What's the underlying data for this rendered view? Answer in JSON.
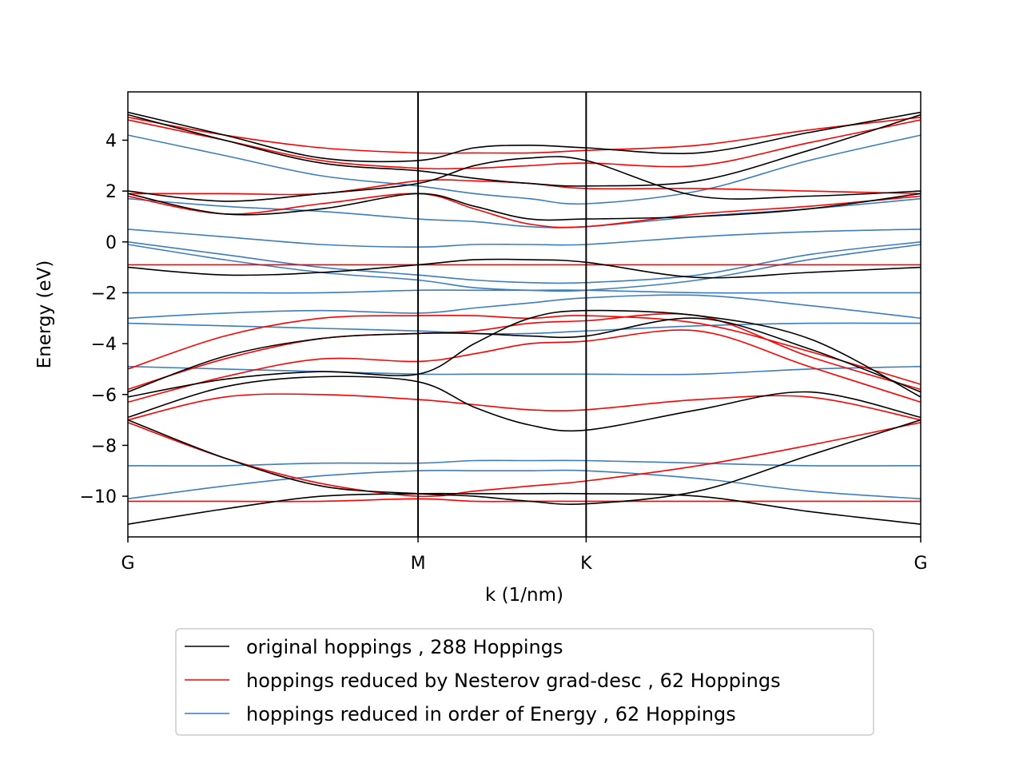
{
  "chart_data": {
    "type": "line",
    "title": "",
    "xlabel": "k (1/nm)",
    "ylabel": "Energy (eV)",
    "xlim": [
      0,
      1
    ],
    "ylim": [
      -11.6,
      5.9
    ],
    "x_ticks": [
      {
        "pos": 0,
        "label": "G"
      },
      {
        "pos": 0.366,
        "label": "M"
      },
      {
        "pos": 0.578,
        "label": "K"
      },
      {
        "pos": 1,
        "label": "G"
      }
    ],
    "y_ticks": [
      4,
      2,
      0,
      -2,
      -4,
      -6,
      -8,
      -10
    ],
    "y_tick_labels": [
      "4",
      "2",
      "0",
      "−2",
      "−4",
      "−6",
      "−8",
      "−10"
    ],
    "vertical_lines_at": [
      0.366,
      0.578
    ],
    "grid": false,
    "legend_position": "below",
    "x": [
      0,
      0.122,
      0.244,
      0.366,
      0.437,
      0.507,
      0.578,
      0.719,
      0.859,
      1
    ],
    "series": [
      {
        "name": "original hoppings , 288 Hoppings",
        "color": "#000000",
        "bands": [
          [
            5.1,
            4.2,
            3.3,
            3.2,
            3.7,
            3.8,
            3.7,
            3.5,
            4.3,
            5.1
          ],
          [
            5.0,
            4.0,
            3.1,
            2.8,
            2.5,
            2.3,
            2.2,
            2.4,
            3.6,
            5.0
          ],
          [
            2.0,
            1.6,
            1.9,
            2.3,
            3.0,
            3.3,
            3.2,
            1.8,
            1.8,
            2.0
          ],
          [
            1.9,
            1.1,
            1.3,
            1.9,
            1.4,
            0.9,
            0.9,
            1.0,
            1.3,
            1.9
          ],
          [
            -1.0,
            -1.3,
            -1.2,
            -0.9,
            -0.7,
            -0.7,
            -0.8,
            -1.4,
            -1.2,
            -1.0
          ],
          [
            -5.9,
            -4.5,
            -3.8,
            -3.6,
            -3.6,
            -3.7,
            -3.7,
            -3.0,
            -4.2,
            -5.9
          ],
          [
            -6.1,
            -5.4,
            -5.1,
            -5.2,
            -4.0,
            -3.0,
            -2.7,
            -2.9,
            -3.8,
            -6.1
          ],
          [
            -6.9,
            -5.7,
            -5.3,
            -5.5,
            -6.5,
            -7.2,
            -7.4,
            -6.6,
            -5.9,
            -6.9
          ],
          [
            -7.0,
            -8.5,
            -9.6,
            -9.9,
            -10.0,
            -10.2,
            -10.3,
            -9.8,
            -8.4,
            -7.0
          ],
          [
            -11.1,
            -10.5,
            -10.0,
            -9.9,
            -9.9,
            -9.9,
            -9.9,
            -10.0,
            -10.6,
            -11.1
          ]
        ]
      },
      {
        "name": "hoppings reduced by Nesterov grad-desc , 62 Hoppings",
        "color": "#ff0000",
        "bands": [
          [
            4.9,
            4.2,
            3.7,
            3.5,
            3.5,
            3.5,
            3.6,
            3.8,
            4.4,
            4.9
          ],
          [
            4.8,
            4.0,
            3.2,
            2.9,
            2.9,
            3.0,
            3.1,
            3.0,
            3.9,
            4.8
          ],
          [
            1.9,
            1.9,
            1.9,
            2.4,
            2.4,
            2.3,
            2.1,
            2.1,
            2.0,
            1.9
          ],
          [
            1.8,
            1.1,
            1.5,
            1.9,
            1.3,
            0.7,
            0.6,
            1.1,
            1.4,
            1.8
          ],
          [
            -0.9,
            -0.9,
            -0.9,
            -0.9,
            -0.9,
            -0.9,
            -0.9,
            -0.9,
            -0.9,
            -0.9
          ],
          [
            -5.0,
            -3.7,
            -3.0,
            -2.9,
            -2.9,
            -3.0,
            -2.9,
            -3.2,
            -4.3,
            -5.6
          ],
          [
            -5.8,
            -4.6,
            -3.8,
            -3.6,
            -3.5,
            -3.2,
            -3.1,
            -2.9,
            -4.5,
            -5.8
          ],
          [
            -6.3,
            -5.3,
            -4.6,
            -4.7,
            -4.4,
            -4.0,
            -3.9,
            -3.5,
            -4.9,
            -6.3
          ],
          [
            -7.0,
            -6.1,
            -6.0,
            -6.2,
            -6.4,
            -6.6,
            -6.6,
            -6.2,
            -6.1,
            -7.0
          ],
          [
            -7.1,
            -8.5,
            -9.5,
            -10.0,
            -9.8,
            -9.6,
            -9.4,
            -8.8,
            -8.0,
            -7.1
          ],
          [
            -10.2,
            -10.2,
            -10.2,
            -10.1,
            -10.2,
            -10.2,
            -10.2,
            -10.2,
            -10.2,
            -10.2
          ]
        ]
      },
      {
        "name": "hoppings reduced in order of Energy , 62 Hoppings",
        "color": "#3b7dbf",
        "bands": [
          [
            4.2,
            3.4,
            2.6,
            2.2,
            1.9,
            1.7,
            1.5,
            2.0,
            3.2,
            4.2
          ],
          [
            1.7,
            1.4,
            1.2,
            0.9,
            0.8,
            0.6,
            0.6,
            1.0,
            1.3,
            1.7
          ],
          [
            0.5,
            0.2,
            -0.1,
            -0.2,
            -0.1,
            -0.1,
            -0.1,
            0.2,
            0.4,
            0.5
          ],
          [
            0.0,
            -0.5,
            -1.0,
            -1.3,
            -1.5,
            -1.6,
            -1.6,
            -1.3,
            -0.5,
            0.0
          ],
          [
            -0.1,
            -0.7,
            -1.2,
            -1.5,
            -1.8,
            -1.9,
            -1.9,
            -1.5,
            -0.7,
            -0.1
          ],
          [
            -2.0,
            -2.0,
            -2.0,
            -1.9,
            -1.9,
            -1.9,
            -1.9,
            -2.0,
            -2.0,
            -2.0
          ],
          [
            -3.0,
            -2.8,
            -2.7,
            -2.8,
            -2.6,
            -2.4,
            -2.2,
            -2.1,
            -2.5,
            -3.0
          ],
          [
            -3.2,
            -3.3,
            -3.4,
            -3.5,
            -3.6,
            -3.6,
            -3.5,
            -3.3,
            -3.2,
            -3.2
          ],
          [
            -4.9,
            -5.0,
            -5.1,
            -5.2,
            -5.2,
            -5.2,
            -5.2,
            -5.2,
            -5.0,
            -4.9
          ],
          [
            -8.8,
            -8.8,
            -8.7,
            -8.7,
            -8.6,
            -8.6,
            -8.6,
            -8.7,
            -8.8,
            -8.8
          ],
          [
            -10.1,
            -9.6,
            -9.2,
            -9.0,
            -9.0,
            -9.0,
            -9.0,
            -9.3,
            -9.8,
            -10.1
          ]
        ]
      }
    ]
  }
}
